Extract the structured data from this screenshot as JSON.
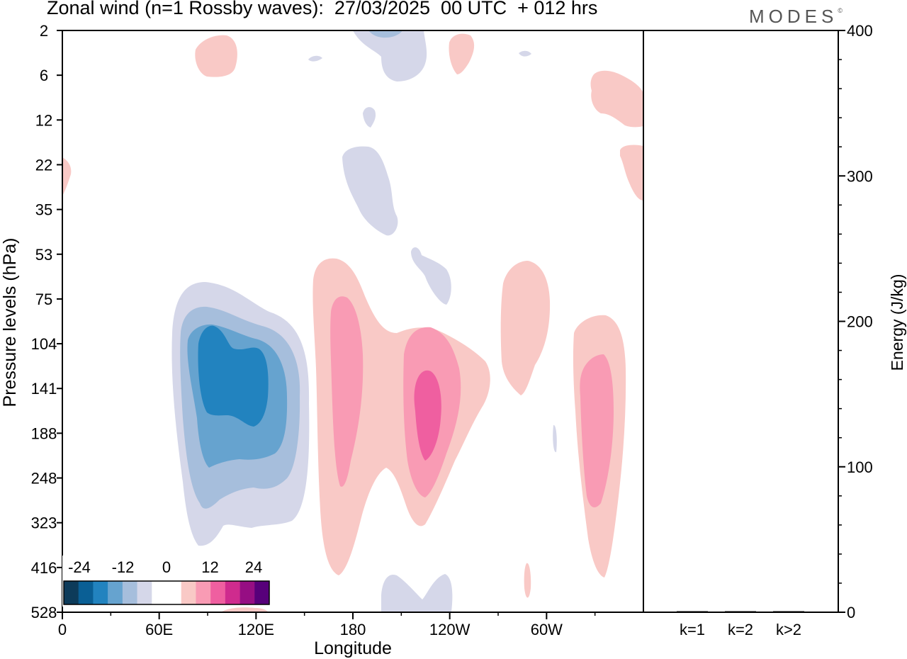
{
  "header": {
    "title": "Zonal wind (n=1 Rossby waves):  27/03/2025  00 UTC  + 012 hrs",
    "brand": "MODES",
    "brand_mark": "©"
  },
  "chart_data": [
    {
      "type": "heatmap",
      "title": "Zonal wind (n=1 Rossby waves):  27/03/2025  00 UTC  + 012 hrs",
      "xlabel": "Longitude",
      "ylabel": "Pressure levels (hPa)",
      "x_ticks": [
        {
          "lon": 0,
          "label": "0"
        },
        {
          "lon": 60,
          "label": "60E"
        },
        {
          "lon": 120,
          "label": "120E"
        },
        {
          "lon": 180,
          "label": "180"
        },
        {
          "lon": 240,
          "label": "120W"
        },
        {
          "lon": 300,
          "label": "60W"
        }
      ],
      "xlim": [
        0,
        360
      ],
      "y_levels": [
        "2",
        "6",
        "12",
        "22",
        "35",
        "53",
        "75",
        "104",
        "141",
        "188",
        "248",
        "323",
        "416",
        "528"
      ],
      "colorbar": {
        "labels": [
          "-24",
          "-12",
          "0",
          "12",
          "24"
        ],
        "colors": [
          "#0d3b5a",
          "#0a5f95",
          "#2283bf",
          "#66a3cf",
          "#a6bedc",
          "#d5d7e9",
          "#ffffff",
          "#ffffff",
          "#f9c9c6",
          "#f99bb4",
          "#ef5fa0",
          "#cf2b8e",
          "#960e83",
          "#57007a"
        ]
      },
      "features": [
        {
          "sign": "negative",
          "lon": 102,
          "level": "141",
          "peak": -20
        },
        {
          "sign": "positive",
          "lon": 174,
          "level": "141",
          "peak": 12
        },
        {
          "sign": "positive",
          "lon": 227,
          "level": "188",
          "peak": 18
        },
        {
          "sign": "positive",
          "lon": 340,
          "level": "188",
          "peak": 12
        },
        {
          "sign": "positive",
          "lon": 286,
          "level": "104",
          "peak": 6
        },
        {
          "sign": "negative",
          "lon": 200,
          "level": "22",
          "peak": -6
        },
        {
          "sign": "negative",
          "lon": 215,
          "level": "528",
          "peak": -6
        }
      ]
    },
    {
      "type": "bar",
      "ylabel": "Energy (J/kg)",
      "categories": [
        "k=1",
        "k=2",
        "k>2"
      ],
      "values": [
        0.5,
        0.3,
        0.7
      ],
      "ylim": [
        0,
        400
      ],
      "y_ticks": [
        "0",
        "100",
        "200",
        "300",
        "400"
      ]
    }
  ]
}
